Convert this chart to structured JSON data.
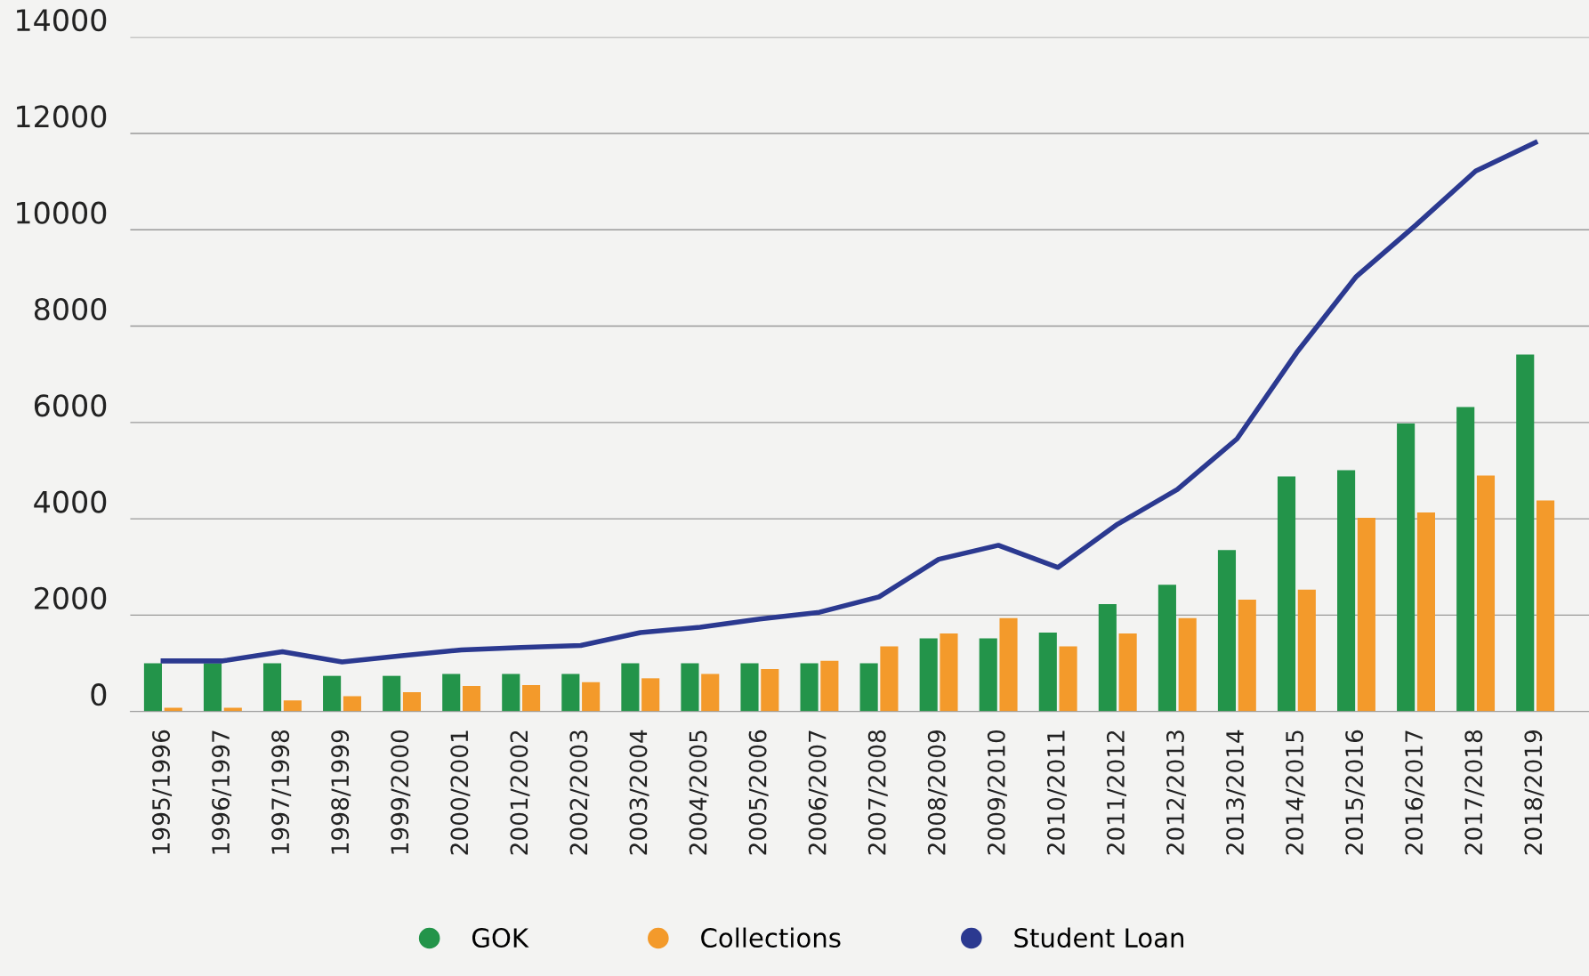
{
  "chart_data": {
    "type": "bar",
    "categories": [
      "1995/1996",
      "1996/1997",
      "1997/1998",
      "1998/1999",
      "1999/2000",
      "2000/2001",
      "2001/2002",
      "2002/2003",
      "2003/2004",
      "2004/2005",
      "2005/2006",
      "2006/2007",
      "2007/2008",
      "2008/2009",
      "2009/2010",
      "2010/2011",
      "2011/2012",
      "2012/2013",
      "2013/2014",
      "2014/2015",
      "2015/2016",
      "2016/2017",
      "2017/2018",
      "2018/2019"
    ],
    "series": [
      {
        "name": "GOK",
        "color": "#23944a",
        "values": [
          1000,
          1000,
          1000,
          740,
          740,
          780,
          780,
          780,
          1000,
          1000,
          1000,
          1000,
          1000,
          1520,
          1520,
          1640,
          2230,
          2630,
          3350,
          4880,
          5010,
          5980,
          6320,
          7410
        ]
      },
      {
        "name": "Collections",
        "color": "#f39a2b",
        "values": [
          80,
          80,
          230,
          320,
          400,
          530,
          550,
          610,
          690,
          780,
          880,
          1050,
          1350,
          1620,
          1940,
          1350,
          1620,
          1940,
          2320,
          2530,
          4020,
          4130,
          4900,
          4380
        ]
      },
      {
        "name": "Student Loan",
        "type": "line",
        "color": "#2b3990",
        "values": [
          1050,
          1050,
          1240,
          1030,
          1160,
          1280,
          1330,
          1370,
          1640,
          1750,
          1920,
          2060,
          2380,
          3160,
          3450,
          2990,
          3890,
          4610,
          5660,
          7450,
          9030,
          10100,
          11220,
          11810
        ]
      }
    ],
    "ylim": [
      0,
      14000
    ],
    "yticks": [
      0,
      2000,
      4000,
      6000,
      8000,
      10000,
      12000,
      14000
    ],
    "grid": "y",
    "legend": "bottom",
    "marker": "none",
    "line_style": "solid"
  }
}
